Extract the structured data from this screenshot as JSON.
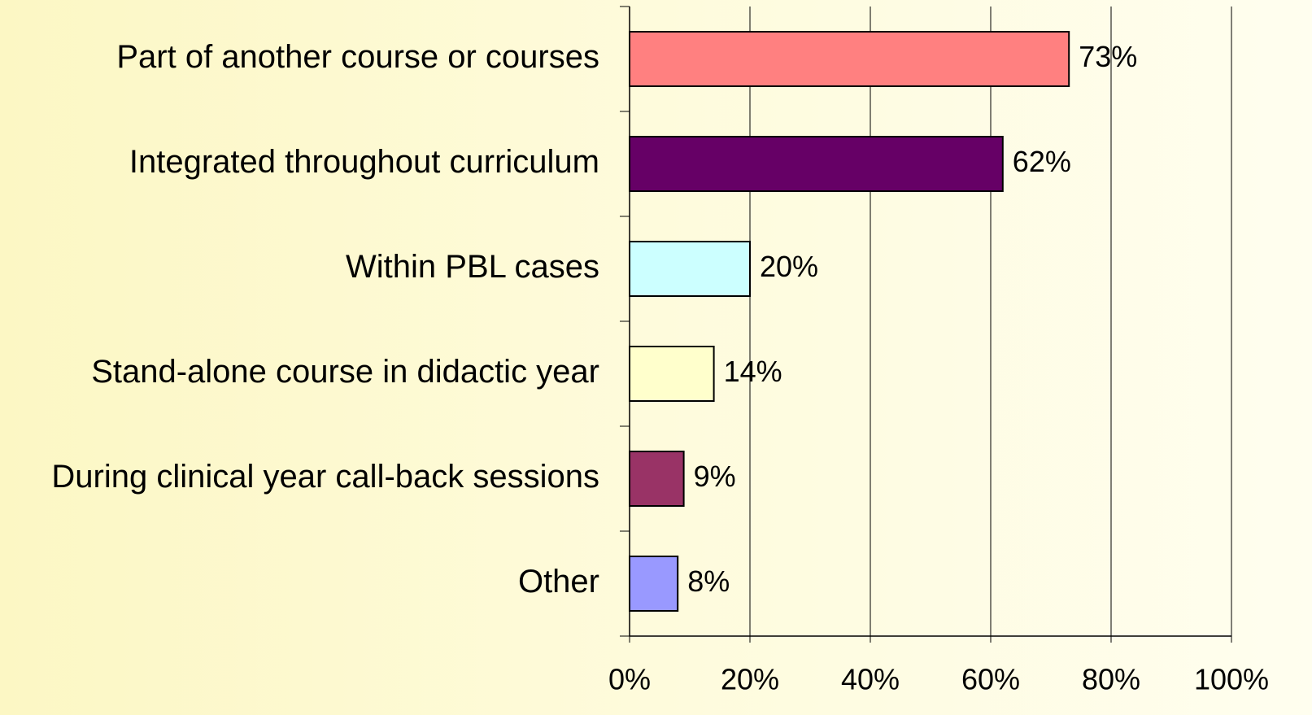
{
  "chart_data": {
    "type": "bar",
    "orientation": "horizontal",
    "categories": [
      "Part of another course or courses",
      "Integrated throughout curriculum",
      "Within PBL cases",
      "Stand-alone course in didactic year",
      "During clinical year call-back sessions",
      "Other"
    ],
    "values": [
      73,
      62,
      20,
      14,
      9,
      8
    ],
    "value_labels": [
      "73%",
      "62%",
      "20%",
      "14%",
      "9%",
      "8%"
    ],
    "colors": [
      "#ff8080",
      "#660066",
      "#ccffff",
      "#ffffcc",
      "#993366",
      "#9999ff"
    ],
    "xlim": [
      0,
      100
    ],
    "xticks": [
      {
        "value": 0,
        "label": "0%"
      },
      {
        "value": 20,
        "label": "20%"
      },
      {
        "value": 40,
        "label": "40%"
      },
      {
        "value": 60,
        "label": "60%"
      },
      {
        "value": 80,
        "label": "80%"
      },
      {
        "value": 100,
        "label": "100%"
      }
    ],
    "grid": true
  }
}
